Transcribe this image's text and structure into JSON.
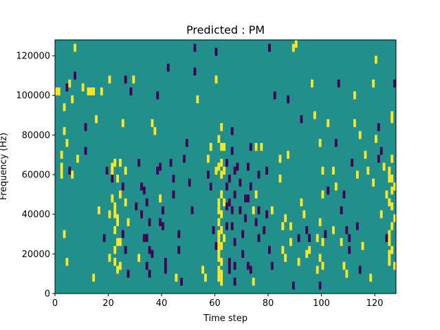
{
  "chart_data": {
    "type": "heatmap",
    "title": "Predicted : PM",
    "xlabel": "Time step",
    "ylabel": "Frequency (Hz)",
    "xlim": [
      0,
      128
    ],
    "ylim": [
      0,
      128000
    ],
    "x_ticks": [
      0,
      20,
      40,
      60,
      80,
      100,
      120
    ],
    "x_tick_labels": [
      "0",
      "20",
      "40",
      "60",
      "80",
      "100",
      "120"
    ],
    "y_ticks": [
      0,
      20000,
      40000,
      60000,
      80000,
      100000,
      120000
    ],
    "y_tick_labels": [
      "0",
      "20000",
      "40000",
      "60000",
      "80000",
      "100000",
      "120000"
    ],
    "grid": false,
    "colormap": "viridis",
    "value_levels": [
      -1,
      0,
      1
    ],
    "colors": {
      "-1": "#440154",
      "0": "#21908d",
      "1": "#fde725"
    },
    "background_value": 0,
    "cells_note": "sparse cells listed as [time_step, freq_bin_start_hz, value]; bin width 4000 Hz",
    "bin_hz": 4000,
    "cells": [
      [
        0,
        100000,
        1
      ],
      [
        1,
        100000,
        1
      ],
      [
        3,
        80000,
        1
      ],
      [
        4,
        74000,
        1
      ],
      [
        2,
        68000,
        1
      ],
      [
        2,
        62000,
        1
      ],
      [
        2,
        58000,
        1
      ],
      [
        3,
        92000,
        1
      ],
      [
        4,
        102000,
        -1
      ],
      [
        5,
        104000,
        1
      ],
      [
        6,
        96000,
        1
      ],
      [
        7,
        122000,
        1
      ],
      [
        3,
        28000,
        1
      ],
      [
        4,
        14000,
        1
      ],
      [
        5,
        60000,
        -1
      ],
      [
        6,
        58000,
        1
      ],
      [
        7,
        108000,
        -1
      ],
      [
        8,
        66000,
        1
      ],
      [
        10,
        102000,
        1
      ],
      [
        11,
        82000,
        -1
      ],
      [
        11,
        70000,
        -1
      ],
      [
        12,
        100000,
        1
      ],
      [
        13,
        100000,
        1
      ],
      [
        14,
        100000,
        1
      ],
      [
        14,
        6000,
        1
      ],
      [
        15,
        86000,
        1
      ],
      [
        16,
        40000,
        1
      ],
      [
        17,
        100000,
        1
      ],
      [
        18,
        26000,
        -1
      ],
      [
        19,
        60000,
        -1
      ],
      [
        20,
        16000,
        1
      ],
      [
        21,
        62000,
        1
      ],
      [
        21,
        60000,
        1
      ],
      [
        21,
        58000,
        1
      ],
      [
        21,
        46000,
        1
      ],
      [
        22,
        42000,
        1
      ],
      [
        22,
        38000,
        1
      ],
      [
        22,
        30000,
        1
      ],
      [
        22,
        20000,
        1
      ],
      [
        22,
        14000,
        1
      ],
      [
        23,
        36000,
        1
      ],
      [
        20,
        38000,
        1
      ],
      [
        20,
        106000,
        1
      ],
      [
        21,
        56000,
        -1
      ],
      [
        22,
        64000,
        1
      ],
      [
        23,
        56000,
        1
      ],
      [
        23,
        34000,
        1
      ],
      [
        23,
        24000,
        1
      ],
      [
        23,
        10000,
        1
      ],
      [
        24,
        64000,
        1
      ],
      [
        24,
        48000,
        1
      ],
      [
        24,
        24000,
        1
      ],
      [
        24,
        12000,
        1
      ],
      [
        25,
        52000,
        -1
      ],
      [
        25,
        28000,
        -1
      ],
      [
        26,
        60000,
        1
      ],
      [
        26,
        44000,
        1
      ],
      [
        26,
        20000,
        -1
      ],
      [
        27,
        34000,
        1
      ],
      [
        27,
        8000,
        -1
      ],
      [
        25,
        84000,
        1
      ],
      [
        26,
        106000,
        -1
      ],
      [
        28,
        100000,
        -1
      ],
      [
        29,
        106000,
        1
      ],
      [
        30,
        42000,
        -1
      ],
      [
        31,
        64000,
        -1
      ],
      [
        31,
        16000,
        1
      ],
      [
        32,
        52000,
        -1
      ],
      [
        32,
        38000,
        -1
      ],
      [
        33,
        50000,
        -1
      ],
      [
        33,
        26000,
        -1
      ],
      [
        34,
        44000,
        -1
      ],
      [
        34,
        26000,
        -1
      ],
      [
        34,
        12000,
        -1
      ],
      [
        35,
        34000,
        -1
      ],
      [
        35,
        20000,
        -1
      ],
      [
        35,
        8000,
        -1
      ],
      [
        36,
        18000,
        -1
      ],
      [
        36,
        84000,
        1
      ],
      [
        37,
        80000,
        1
      ],
      [
        38,
        98000,
        -1
      ],
      [
        38,
        60000,
        -1
      ],
      [
        39,
        62000,
        -1
      ],
      [
        39,
        46000,
        1
      ],
      [
        39,
        34000,
        -1
      ],
      [
        40,
        40000,
        -1
      ],
      [
        40,
        32000,
        -1
      ],
      [
        41,
        14000,
        -1
      ],
      [
        41,
        10000,
        -1
      ],
      [
        42,
        112000,
        -1
      ],
      [
        43,
        64000,
        -1
      ],
      [
        44,
        56000,
        -1
      ],
      [
        44,
        48000,
        -1
      ],
      [
        45,
        6000,
        1
      ],
      [
        46,
        28000,
        -1
      ],
      [
        46,
        20000,
        -1
      ],
      [
        47,
        4000,
        -1
      ],
      [
        48,
        66000,
        -1
      ],
      [
        49,
        74000,
        -1
      ],
      [
        50,
        54000,
        -1
      ],
      [
        51,
        40000,
        -1
      ],
      [
        52,
        122000,
        -1
      ],
      [
        52,
        110000,
        -1
      ],
      [
        53,
        96000,
        1
      ],
      [
        55,
        10000,
        1
      ],
      [
        56,
        6000,
        1
      ],
      [
        57,
        66000,
        1
      ],
      [
        57,
        58000,
        -1
      ],
      [
        58,
        72000,
        1
      ],
      [
        58,
        52000,
        -1
      ],
      [
        59,
        30000,
        -1
      ],
      [
        60,
        60000,
        1
      ],
      [
        60,
        22000,
        -1
      ],
      [
        60,
        120000,
        -1
      ],
      [
        60,
        106000,
        1
      ],
      [
        61,
        76000,
        1
      ],
      [
        61,
        62000,
        1
      ],
      [
        61,
        44000,
        1
      ],
      [
        61,
        40000,
        1
      ],
      [
        61,
        34000,
        1
      ],
      [
        61,
        28000,
        1
      ],
      [
        61,
        24000,
        1
      ],
      [
        61,
        20000,
        1
      ],
      [
        61,
        16000,
        1
      ],
      [
        61,
        10000,
        1
      ],
      [
        61,
        6000,
        1
      ],
      [
        62,
        82000,
        1
      ],
      [
        62,
        72000,
        1
      ],
      [
        62,
        64000,
        1
      ],
      [
        62,
        58000,
        1
      ],
      [
        62,
        48000,
        1
      ],
      [
        62,
        38000,
        1
      ],
      [
        62,
        30000,
        1
      ],
      [
        62,
        22000,
        1
      ],
      [
        62,
        14000,
        1
      ],
      [
        62,
        8000,
        1
      ],
      [
        62,
        4000,
        1
      ],
      [
        63,
        72000,
        1
      ],
      [
        63,
        60000,
        1
      ],
      [
        63,
        44000,
        1
      ],
      [
        63,
        26000,
        1
      ],
      [
        64,
        64000,
        -1
      ],
      [
        64,
        52000,
        -1
      ],
      [
        64,
        42000,
        -1
      ],
      [
        64,
        32000,
        -1
      ],
      [
        65,
        56000,
        -1
      ],
      [
        65,
        44000,
        -1
      ],
      [
        65,
        14000,
        -1
      ],
      [
        65,
        10000,
        -1
      ],
      [
        66,
        80000,
        -1
      ],
      [
        66,
        70000,
        -1
      ],
      [
        66,
        40000,
        -1
      ],
      [
        66,
        32000,
        -1
      ],
      [
        67,
        60000,
        -1
      ],
      [
        67,
        48000,
        -1
      ],
      [
        67,
        24000,
        -1
      ],
      [
        67,
        12000,
        -1
      ],
      [
        67,
        4000,
        -1
      ],
      [
        68,
        62000,
        -1
      ],
      [
        69,
        54000,
        -1
      ],
      [
        69,
        40000,
        -1
      ],
      [
        70,
        28000,
        -1
      ],
      [
        70,
        18000,
        -1
      ],
      [
        71,
        46000,
        -1
      ],
      [
        71,
        36000,
        -1
      ],
      [
        72,
        62000,
        -1
      ],
      [
        72,
        46000,
        -1
      ],
      [
        72,
        12000,
        -1
      ],
      [
        73,
        72000,
        -1
      ],
      [
        73,
        52000,
        -1
      ],
      [
        73,
        10000,
        -1
      ],
      [
        74,
        4000,
        1
      ],
      [
        74,
        40000,
        1
      ],
      [
        75,
        72000,
        1
      ],
      [
        75,
        48000,
        1
      ],
      [
        75,
        34000,
        -1
      ],
      [
        76,
        58000,
        -1
      ],
      [
        76,
        40000,
        -1
      ],
      [
        76,
        26000,
        -1
      ],
      [
        77,
        72000,
        1
      ],
      [
        78,
        30000,
        -1
      ],
      [
        79,
        60000,
        -1
      ],
      [
        79,
        38000,
        -1
      ],
      [
        80,
        20000,
        -1
      ],
      [
        81,
        40000,
        1
      ],
      [
        81,
        12000,
        -1
      ],
      [
        80,
        122000,
        -1
      ],
      [
        82,
        98000,
        -1
      ],
      [
        84,
        66000,
        1
      ],
      [
        84,
        56000,
        1
      ],
      [
        85,
        32000,
        1
      ],
      [
        85,
        20000,
        1
      ],
      [
        86,
        36000,
        1
      ],
      [
        86,
        16000,
        1
      ],
      [
        87,
        68000,
        1
      ],
      [
        87,
        96000,
        -1
      ],
      [
        88,
        32000,
        1
      ],
      [
        88,
        24000,
        1
      ],
      [
        89,
        122000,
        1
      ],
      [
        89,
        2000,
        -1
      ],
      [
        90,
        124000,
        1
      ],
      [
        91,
        26000,
        -1
      ],
      [
        91,
        14000,
        1
      ],
      [
        92,
        86000,
        -1
      ],
      [
        92,
        44000,
        1
      ],
      [
        93,
        38000,
        1
      ],
      [
        94,
        30000,
        -1
      ],
      [
        94,
        18000,
        1
      ],
      [
        95,
        26000,
        -1
      ],
      [
        95,
        20000,
        1
      ],
      [
        96,
        104000,
        1
      ],
      [
        97,
        88000,
        1
      ],
      [
        98,
        26000,
        1
      ],
      [
        98,
        10000,
        1
      ],
      [
        99,
        74000,
        1
      ],
      [
        99,
        34000,
        1
      ],
      [
        99,
        16000,
        1
      ],
      [
        99,
        2000,
        -1
      ],
      [
        100,
        24000,
        1
      ],
      [
        100,
        12000,
        1
      ],
      [
        100,
        60000,
        1
      ],
      [
        100,
        48000,
        1
      ],
      [
        101,
        28000,
        -1
      ],
      [
        102,
        50000,
        -1
      ],
      [
        102,
        84000,
        1
      ],
      [
        104,
        60000,
        1
      ],
      [
        104,
        30000,
        1
      ],
      [
        105,
        52000,
        1
      ],
      [
        105,
        74000,
        -1
      ],
      [
        106,
        104000,
        -1
      ],
      [
        107,
        24000,
        1
      ],
      [
        107,
        40000,
        -1
      ],
      [
        108,
        48000,
        -1
      ],
      [
        108,
        12000,
        1
      ],
      [
        109,
        30000,
        -1
      ],
      [
        109,
        8000,
        1
      ],
      [
        110,
        26000,
        -1
      ],
      [
        110,
        20000,
        -1
      ],
      [
        111,
        64000,
        -1
      ],
      [
        112,
        98000,
        1
      ],
      [
        112,
        84000,
        1
      ],
      [
        113,
        58000,
        1
      ],
      [
        113,
        32000,
        -1
      ],
      [
        114,
        78000,
        1
      ],
      [
        114,
        10000,
        -1
      ],
      [
        115,
        22000,
        1
      ],
      [
        116,
        68000,
        1
      ],
      [
        117,
        60000,
        1
      ],
      [
        118,
        6000,
        1
      ],
      [
        119,
        54000,
        1
      ],
      [
        119,
        104000,
        1
      ],
      [
        120,
        116000,
        1
      ],
      [
        120,
        76000,
        1
      ],
      [
        121,
        82000,
        -1
      ],
      [
        121,
        66000,
        -1
      ],
      [
        122,
        70000,
        -1
      ],
      [
        122,
        38000,
        1
      ],
      [
        123,
        62000,
        1
      ],
      [
        124,
        48000,
        1
      ],
      [
        124,
        26000,
        -1
      ],
      [
        125,
        60000,
        1
      ],
      [
        125,
        56000,
        1
      ],
      [
        125,
        44000,
        1
      ],
      [
        125,
        28000,
        1
      ],
      [
        125,
        24000,
        1
      ],
      [
        125,
        18000,
        1
      ],
      [
        125,
        14000,
        1
      ],
      [
        126,
        66000,
        1
      ],
      [
        126,
        56000,
        1
      ],
      [
        126,
        50000,
        1
      ],
      [
        126,
        42000,
        1
      ],
      [
        126,
        32000,
        1
      ],
      [
        126,
        20000,
        1
      ],
      [
        127,
        52000,
        1
      ],
      [
        127,
        36000,
        1
      ],
      [
        127,
        12000,
        1
      ],
      [
        127,
        104000,
        -1
      ],
      [
        126,
        88000,
        1
      ],
      [
        126,
        86000,
        1
      ]
    ]
  }
}
